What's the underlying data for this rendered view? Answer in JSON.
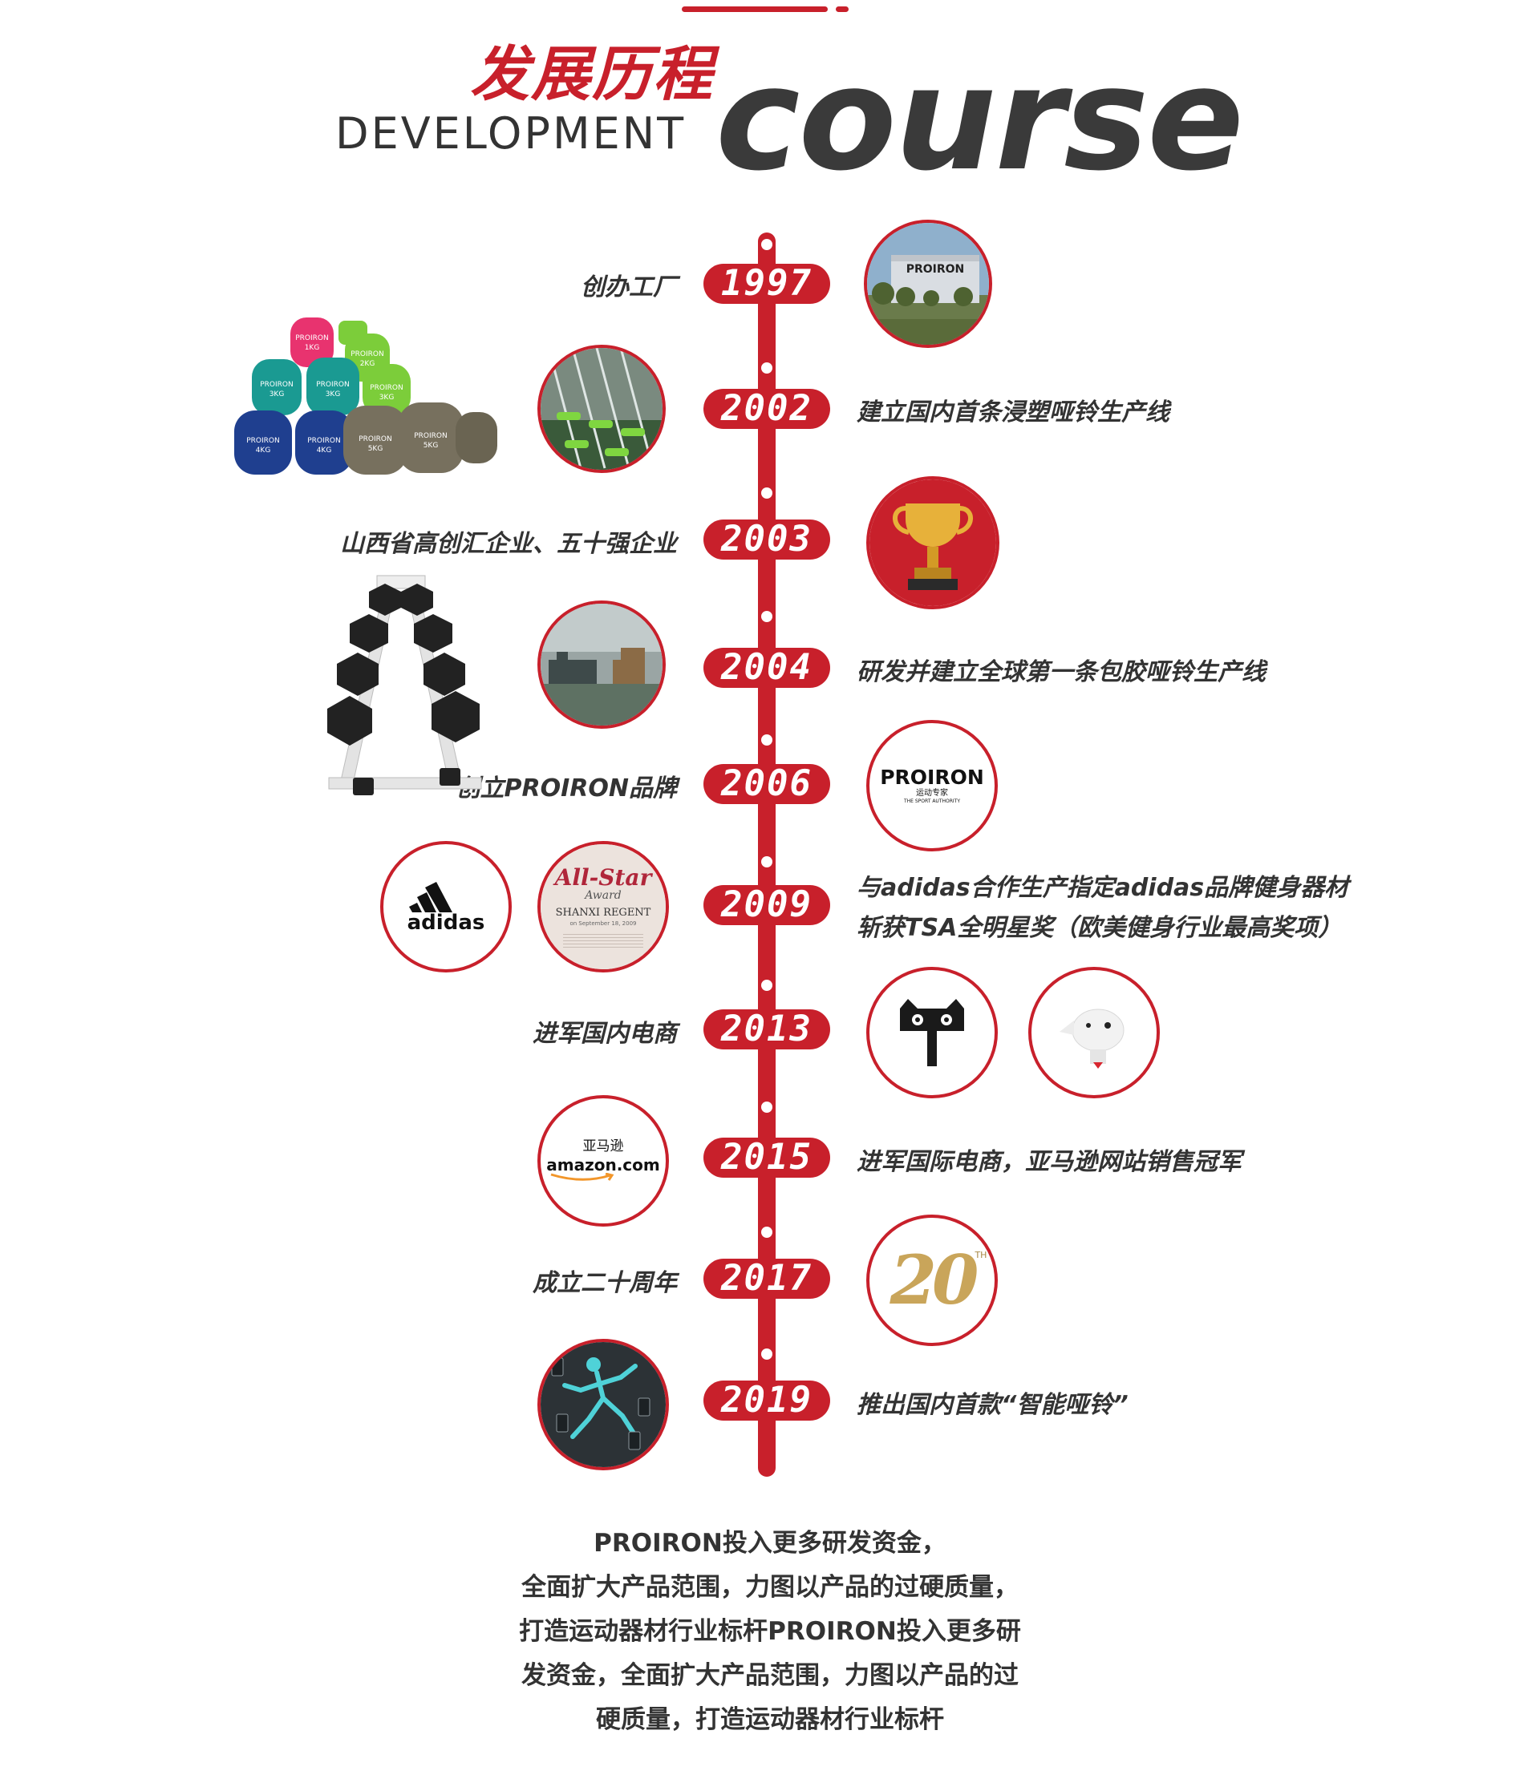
{
  "header": {
    "title_cn": "发展历程",
    "title_en": "DEVELOPMENT",
    "title_big": "course"
  },
  "timeline": [
    {
      "year": "1997",
      "event": "创办工厂"
    },
    {
      "year": "2002",
      "event": "建立国内首条浸塑哑铃生产线"
    },
    {
      "year": "2003",
      "event": "山西省高创汇企业、五十强企业"
    },
    {
      "year": "2004",
      "event": "研发并建立全球第一条包胶哑铃生产线"
    },
    {
      "year": "2006",
      "event": "创立PROIRON品牌"
    },
    {
      "year": "2009",
      "event": "与adidas合作生产指定adidas品牌健身器材",
      "event2": "斩获TSA全明星奖（欧美健身行业最高奖项）"
    },
    {
      "year": "2013",
      "event": "进军国内电商"
    },
    {
      "year": "2015",
      "event": "进军国际电商，亚马逊网站销售冠军"
    },
    {
      "year": "2017",
      "event": "成立二十周年"
    },
    {
      "year": "2019",
      "event": "推出国内首款“智能哑铃”"
    }
  ],
  "images": {
    "factory_sign": "PROIRON",
    "logo_brand": "PROIRON",
    "logo_sub_cn": "运动专家",
    "logo_sub_en": "THE SPORT AUTHORITY",
    "adidas": "adidas",
    "allstar_title": "All-Star",
    "allstar_award": "Award",
    "allstar_company": "SHANXI REGENT",
    "allstar_date": "on September 18, 2009",
    "amazon_cn": "亚马逊",
    "amazon_en": "amazon.com",
    "twenty": "20",
    "twenty_th": "TH",
    "dumbbells": [
      {
        "brand": "PROIRON",
        "weight": "1KG",
        "color": "#e8336f"
      },
      {
        "brand": "PROIRON",
        "weight": "2KG",
        "color": "#7ccd3a"
      },
      {
        "brand": "PROIRON",
        "weight": "3KG",
        "color": "#1a9a92"
      },
      {
        "brand": "PROIRON",
        "weight": "3KG",
        "color": "#1a9a92"
      },
      {
        "brand": "PROIRON",
        "weight": "3KG",
        "color": "#7ccd3a"
      },
      {
        "brand": "PROIRON",
        "weight": "4KG",
        "color": "#1f3f8f"
      },
      {
        "brand": "PROIRON",
        "weight": "4KG",
        "color": "#1f3f8f"
      },
      {
        "brand": "PROIRON",
        "weight": "5KG",
        "color": "#77705e"
      },
      {
        "brand": "PROIRON",
        "weight": "5KG",
        "color": "#77705e"
      }
    ]
  },
  "footer": [
    "PROIRON投入更多研发资金，",
    "全面扩大产品范围，力图以产品的过硬质量，",
    "打造运动器材行业标杆PROIRON投入更多研",
    "发资金，全面扩大产品范围，力图以产品的过",
    "硬质量，打造运动器材行业标杆"
  ],
  "colors": {
    "accent": "#c8202b",
    "text": "#333333"
  }
}
